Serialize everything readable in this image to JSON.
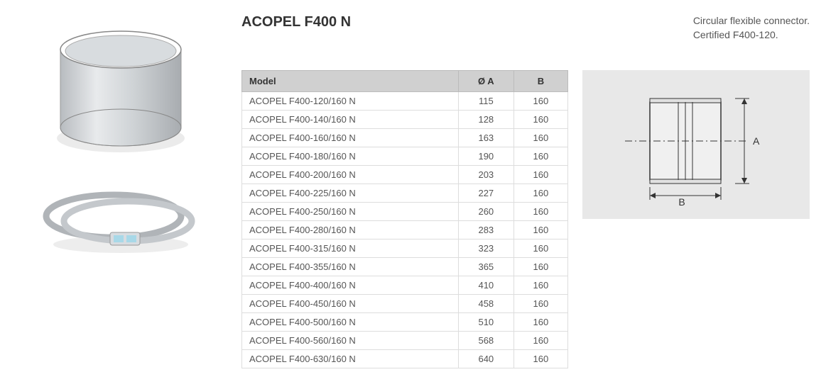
{
  "title": "ACOPEL F400 N",
  "description_line1": "Circular flexible connector.",
  "description_line2": "Certified F400-120.",
  "table": {
    "headers": {
      "model": "Model",
      "a": "Ø A",
      "b": "B"
    },
    "rows": [
      {
        "model": "ACOPEL F400-120/160 N",
        "a": "115",
        "b": "160"
      },
      {
        "model": "ACOPEL F400-140/160 N",
        "a": "128",
        "b": "160"
      },
      {
        "model": "ACOPEL F400-160/160 N",
        "a": "163",
        "b": "160"
      },
      {
        "model": "ACOPEL F400-180/160 N",
        "a": "190",
        "b": "160"
      },
      {
        "model": "ACOPEL F400-200/160 N",
        "a": "203",
        "b": "160"
      },
      {
        "model": "ACOPEL F400-225/160 N",
        "a": "227",
        "b": "160"
      },
      {
        "model": "ACOPEL F400-250/160 N",
        "a": "260",
        "b": "160"
      },
      {
        "model": "ACOPEL F400-280/160 N",
        "a": "283",
        "b": "160"
      },
      {
        "model": "ACOPEL F400-315/160 N",
        "a": "323",
        "b": "160"
      },
      {
        "model": "ACOPEL F400-355/160 N",
        "a": "365",
        "b": "160"
      },
      {
        "model": "ACOPEL F400-400/160 N",
        "a": "410",
        "b": "160"
      },
      {
        "model": "ACOPEL F400-450/160 N",
        "a": "458",
        "b": "160"
      },
      {
        "model": "ACOPEL F400-500/160 N",
        "a": "510",
        "b": "160"
      },
      {
        "model": "ACOPEL F400-560/160 N",
        "a": "568",
        "b": "160"
      },
      {
        "model": "ACOPEL F400-630/160 N",
        "a": "640",
        "b": "160"
      }
    ]
  },
  "diagram": {
    "label_a": "A",
    "label_b": "B",
    "stroke": "#333333",
    "bg": "#e8e8e8",
    "fill": "#f4f4f4"
  },
  "colors": {
    "th_bg": "#d0d0d0",
    "border": "#dddddd",
    "text": "#555555"
  }
}
